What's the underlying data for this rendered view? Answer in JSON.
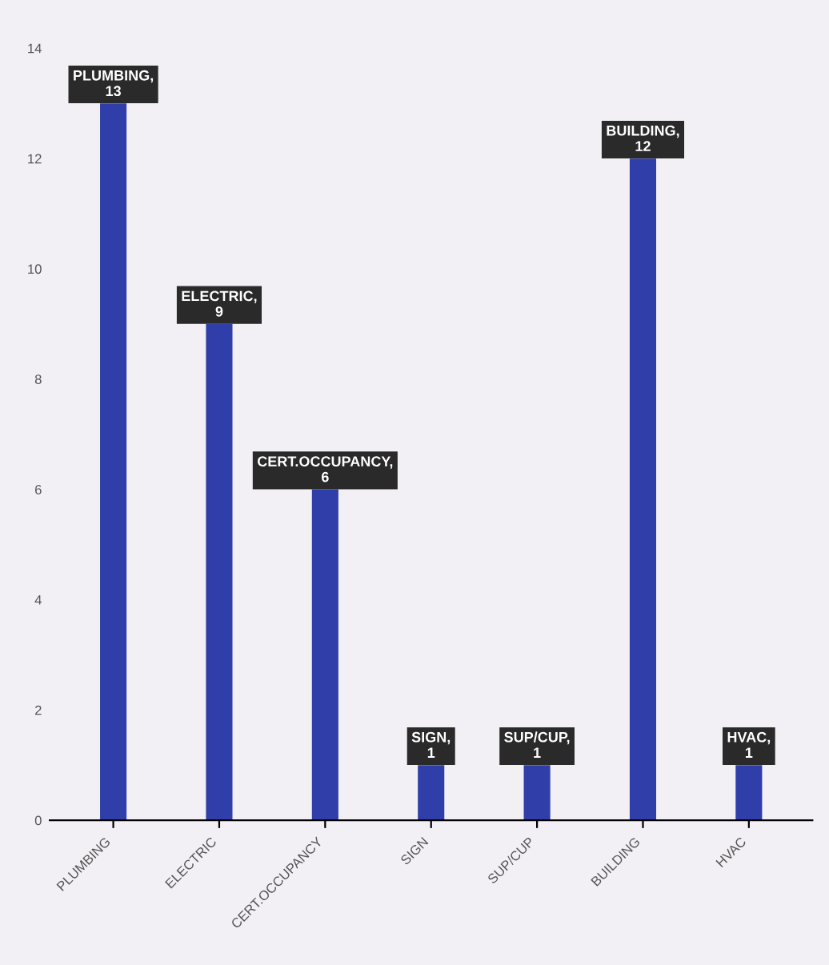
{
  "chart_data": {
    "type": "bar",
    "categories": [
      "PLUMBING",
      "ELECTRIC",
      "CERT.OCCUPANCY",
      "SIGN",
      "SUP/CUP",
      "BUILDING",
      "HVAC"
    ],
    "values": [
      13,
      9,
      6,
      1,
      1,
      12,
      1
    ],
    "color": "#2f3ea8",
    "value_labels": [
      "PLUMBING,13",
      "ELECTRIC,9",
      "CERT.OCCUPANCY,6",
      "SIGN,1",
      "SUP/CUP,1",
      "BUILDING,12",
      "HVAC,1"
    ],
    "ylim": [
      0,
      14
    ],
    "yticks": [
      0,
      2,
      4,
      6,
      8,
      10,
      12,
      14
    ],
    "grid": false,
    "legend": false
  }
}
